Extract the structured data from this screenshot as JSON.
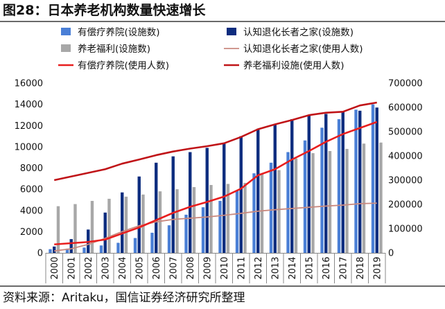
{
  "figure_title": "图28：日本养老机构数量快速增长",
  "source_note": "资料来源：Aritaku，国信证券经济研究所整理",
  "colors": {
    "hospital_bar": "#4a7fd6",
    "family_bar": "#0d2d7f",
    "welfare_bar": "#a8a8a8",
    "family_users_line": "#c98a80",
    "hospital_users_line": "#e81e1e",
    "welfare_users_line": "#c01418",
    "axis": "#888888"
  },
  "chart_data": {
    "type": "bar",
    "title": "",
    "xlabel": "",
    "ylabel": "",
    "categories": [
      "2000",
      "2001",
      "2002",
      "2003",
      "2004",
      "2005",
      "2006",
      "2007",
      "2008",
      "2009",
      "2010",
      "2011",
      "2012",
      "2013",
      "2014",
      "2015",
      "2016",
      "2017",
      "2018",
      "2019"
    ],
    "ylim": [
      0,
      16000
    ],
    "yticks": [
      "0",
      "2000",
      "4000",
      "6000",
      "8000",
      "10000",
      "12000",
      "14000",
      "16000"
    ],
    "y2lim": [
      0,
      700000
    ],
    "y2ticks": [
      "0",
      "100000",
      "200000",
      "300000",
      "400000",
      "500000",
      "600000",
      "700000"
    ],
    "legend_position": "top",
    "grid": false,
    "bar_series": [
      {
        "name": "有偿疗养院(设施数)",
        "axis": "left",
        "color": "#4a7fd6",
        "values": [
          350,
          400,
          500,
          700,
          950,
          1400,
          1900,
          2600,
          3600,
          4300,
          4900,
          5900,
          7500,
          8500,
          9500,
          10600,
          11800,
          12600,
          13500,
          14000
        ]
      },
      {
        "name": "认知退化长者之家(设施数)",
        "axis": "left",
        "color": "#0d2d7f",
        "values": [
          600,
          1300,
          2200,
          3800,
          5700,
          7200,
          8500,
          9100,
          9500,
          9900,
          10300,
          11000,
          11700,
          12100,
          12600,
          13000,
          13100,
          13300,
          13400,
          13700
        ]
      },
      {
        "name": "养老福利(设施数)",
        "axis": "left",
        "color": "#a8a8a8",
        "values": [
          4400,
          4600,
          4900,
          5100,
          5300,
          5500,
          5800,
          6000,
          6200,
          6400,
          6500,
          6600,
          7500,
          7800,
          8900,
          9400,
          9600,
          9800,
          10300,
          10400
        ]
      }
    ],
    "line_series": [
      {
        "name": "认知退化长者之家(使用人数)",
        "axis": "right",
        "color": "#c98a80",
        "values": [
          8000,
          17000,
          35000,
          60000,
          88000,
          112000,
          128000,
          138000,
          143000,
          148000,
          155000,
          163000,
          172000,
          178000,
          183000,
          188000,
          193000,
          197000,
          203000,
          205000
        ]
      },
      {
        "name": "有偿疗养院(使用人数)",
        "axis": "right",
        "color": "#e81e1e",
        "values": [
          35000,
          40000,
          45000,
          55000,
          80000,
          105000,
          135000,
          165000,
          190000,
          210000,
          232000,
          265000,
          320000,
          345000,
          385000,
          420000,
          458000,
          490000,
          515000,
          540000
        ]
      },
      {
        "name": "养老福利设施(使用人数)",
        "axis": "right",
        "color": "#c01418",
        "values": [
          300000,
          315000,
          330000,
          345000,
          368000,
          385000,
          403000,
          418000,
          430000,
          440000,
          452000,
          478000,
          510000,
          530000,
          548000,
          568000,
          578000,
          582000,
          608000,
          620000
        ]
      }
    ]
  }
}
